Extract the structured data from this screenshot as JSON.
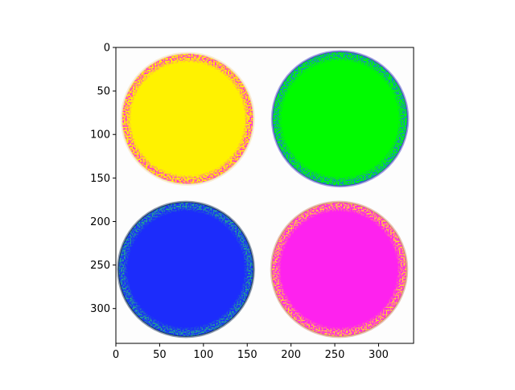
{
  "chart_data": {
    "type": "image",
    "title": "",
    "xlabel": "",
    "ylabel": "",
    "xlim": [
      0,
      340
    ],
    "ylim": [
      340,
      0
    ],
    "x_ticks": [
      0,
      50,
      100,
      150,
      200,
      250,
      300
    ],
    "y_ticks": [
      0,
      50,
      100,
      150,
      200,
      250,
      300
    ],
    "background_color": "#fdfdfd",
    "circles": [
      {
        "name": "yellow",
        "cx": 82,
        "cy": 82,
        "r": 75,
        "fill": "#fff200",
        "edge": "#ff2ce0",
        "rim": "#f4d9a6"
      },
      {
        "name": "green",
        "cx": 256,
        "cy": 82,
        "r": 77,
        "fill": "#00fb00",
        "edge": "#1e7fd0",
        "rim": "#3c3cbe"
      },
      {
        "name": "blue",
        "cx": 80,
        "cy": 255,
        "r": 77,
        "fill": "#1c2cfb",
        "edge": "#22a890",
        "rim": "#0b2a55"
      },
      {
        "name": "magenta",
        "cx": 255,
        "cy": 255,
        "r": 77,
        "fill": "#fe22ee",
        "edge": "#ffd430",
        "rim": "#d08060"
      }
    ]
  }
}
